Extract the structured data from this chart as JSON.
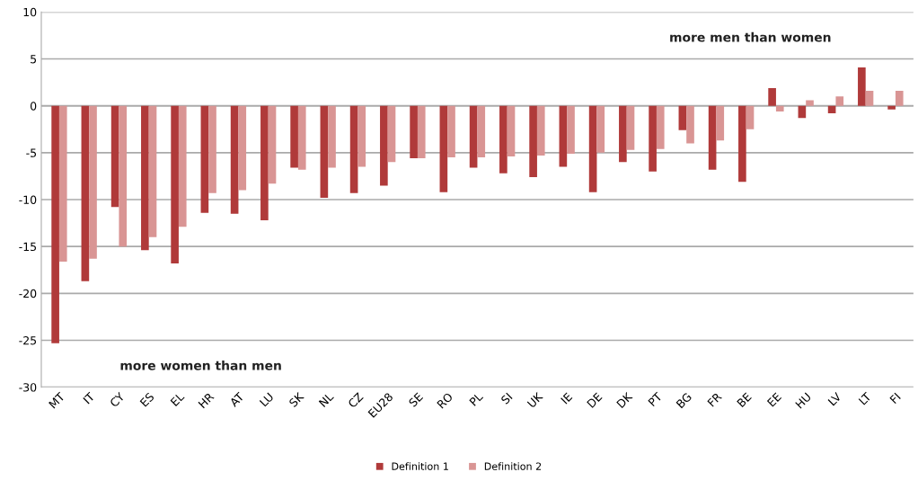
{
  "chart_data": {
    "type": "bar",
    "categories": [
      "MT",
      "IT",
      "CY",
      "ES",
      "EL",
      "HR",
      "AT",
      "LU",
      "SK",
      "NL",
      "CZ",
      "EU28",
      "SE",
      "RO",
      "PL",
      "SI",
      "UK",
      "IE",
      "DE",
      "DK",
      "PT",
      "BG",
      "FR",
      "BE",
      "EE",
      "HU",
      "LV",
      "LT",
      "FI"
    ],
    "series": [
      {
        "name": "Definition 1",
        "color": "#b03a3a",
        "values": [
          -25.3,
          -18.7,
          -10.8,
          -15.4,
          -16.8,
          -11.4,
          -11.5,
          -12.2,
          -6.6,
          -9.8,
          -9.3,
          -8.5,
          -5.6,
          -9.2,
          -6.6,
          -7.2,
          -7.6,
          -6.5,
          -9.2,
          -6.0,
          -7.0,
          -2.6,
          -6.8,
          -8.1,
          1.9,
          -1.3,
          -0.8,
          4.1,
          -0.4
        ]
      },
      {
        "name": "Definition 2",
        "color": "#d99594",
        "values": [
          -16.6,
          -16.3,
          -15.0,
          -14.0,
          -12.9,
          -9.3,
          -9.0,
          -8.3,
          -6.8,
          -6.6,
          -6.5,
          -6.0,
          -5.6,
          -5.5,
          -5.5,
          -5.4,
          -5.3,
          -5.1,
          -5.0,
          -4.7,
          -4.6,
          -4.0,
          -3.7,
          -2.5,
          -0.6,
          0.6,
          1.0,
          1.6,
          1.6
        ]
      }
    ],
    "ylim": [
      -30,
      10
    ],
    "yticks": [
      -30,
      -25,
      -20,
      -15,
      -10,
      -5,
      0,
      5,
      10
    ],
    "grid": "y",
    "legend": "bottom",
    "annotations": [
      "more men than women",
      "more women than men"
    ]
  }
}
